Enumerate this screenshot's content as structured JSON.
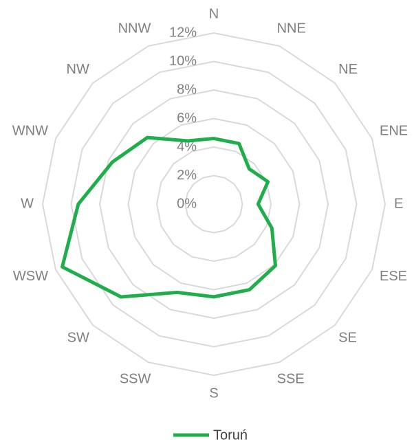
{
  "chart_data": {
    "type": "radar",
    "categories": [
      "N",
      "NNE",
      "NE",
      "ENE",
      "E",
      "ESE",
      "SE",
      "SSE",
      "S",
      "SSW",
      "SW",
      "WSW",
      "W",
      "WNW",
      "NW",
      "NNW"
    ],
    "series": [
      {
        "name": "Toruń",
        "color": "#1fae4b",
        "values": [
          4.6,
          4.6,
          3.5,
          4.1,
          3.1,
          4.4,
          6.1,
          6.5,
          6.5,
          6.7,
          9.2,
          11.5,
          9.5,
          7.7,
          6.6,
          4.8
        ]
      }
    ],
    "ylim": [
      0,
      12
    ],
    "yticks": [
      {
        "value": 0,
        "label": "0%"
      },
      {
        "value": 2,
        "label": "2%"
      },
      {
        "value": 4,
        "label": "4%"
      },
      {
        "value": 6,
        "label": "6%"
      },
      {
        "value": 8,
        "label": "8%"
      },
      {
        "value": 10,
        "label": "10%"
      },
      {
        "value": 12,
        "label": "12%"
      }
    ],
    "grid": true,
    "legend": "bottom"
  }
}
